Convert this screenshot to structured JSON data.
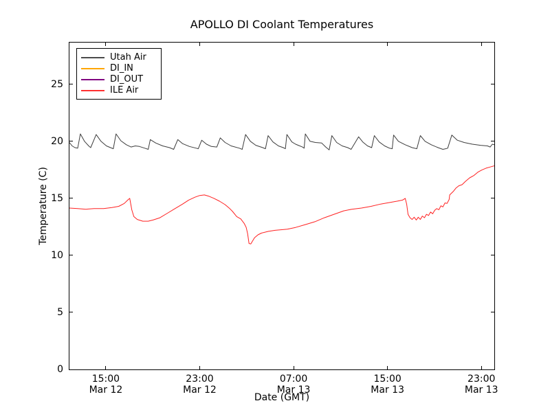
{
  "chart_data": {
    "type": "line",
    "title": "APOLLO DI Coolant Temperatures",
    "xlabel": "Date (GMT)",
    "ylabel": "Temperature (C)",
    "x_unit": "hours since Mar 12 00:00 GMT",
    "xlim": [
      11.9,
      48.1
    ],
    "ylim": [
      0,
      28.66
    ],
    "grid": false,
    "legend_position": "upper-left",
    "yticks": [
      0,
      5,
      10,
      15,
      20,
      25
    ],
    "xticks": [
      {
        "value": 15,
        "labels": [
          "15:00",
          "Mar 12"
        ]
      },
      {
        "value": 23,
        "labels": [
          "23:00",
          "Mar 12"
        ]
      },
      {
        "value": 31,
        "labels": [
          "07:00",
          "Mar 13"
        ]
      },
      {
        "value": 39,
        "labels": [
          "15:00",
          "Mar 13"
        ]
      },
      {
        "value": 47,
        "labels": [
          "23:00",
          "Mar 13"
        ]
      }
    ],
    "legend": [
      {
        "label": "Utah Air",
        "color": "#4a4a4a"
      },
      {
        "label": "DI_IN",
        "color": "#ffa500"
      },
      {
        "label": "DI_OUT",
        "color": "#800080"
      },
      {
        "label": "ILE Air",
        "color": "#ff3030"
      }
    ],
    "series": [
      {
        "name": "Utah Air",
        "color": "#3c3c3c",
        "points": [
          [
            11.9,
            19.9
          ],
          [
            12.13,
            19.6
          ],
          [
            12.37,
            19.45
          ],
          [
            12.6,
            19.4
          ],
          [
            12.83,
            20.65
          ],
          [
            13.18,
            20.0
          ],
          [
            13.54,
            19.6
          ],
          [
            13.71,
            19.45
          ],
          [
            14.18,
            20.6
          ],
          [
            14.59,
            20.0
          ],
          [
            15.05,
            19.6
          ],
          [
            15.4,
            19.45
          ],
          [
            15.64,
            19.35
          ],
          [
            15.87,
            20.65
          ],
          [
            16.28,
            20.05
          ],
          [
            16.75,
            19.7
          ],
          [
            17.15,
            19.5
          ],
          [
            17.51,
            19.6
          ],
          [
            17.86,
            19.55
          ],
          [
            18.32,
            19.4
          ],
          [
            18.61,
            19.3
          ],
          [
            18.79,
            20.15
          ],
          [
            19.26,
            19.85
          ],
          [
            19.84,
            19.6
          ],
          [
            20.43,
            19.45
          ],
          [
            20.78,
            19.3
          ],
          [
            21.13,
            20.15
          ],
          [
            21.54,
            19.8
          ],
          [
            22.12,
            19.55
          ],
          [
            22.7,
            19.4
          ],
          [
            22.88,
            19.35
          ],
          [
            23.17,
            20.1
          ],
          [
            23.58,
            19.75
          ],
          [
            23.99,
            19.55
          ],
          [
            24.46,
            19.5
          ],
          [
            24.75,
            20.3
          ],
          [
            25.16,
            19.9
          ],
          [
            25.68,
            19.6
          ],
          [
            26.38,
            19.4
          ],
          [
            26.62,
            19.3
          ],
          [
            26.91,
            20.6
          ],
          [
            27.32,
            20.0
          ],
          [
            27.78,
            19.65
          ],
          [
            28.37,
            19.45
          ],
          [
            28.6,
            19.35
          ],
          [
            28.83,
            20.5
          ],
          [
            29.24,
            19.95
          ],
          [
            29.71,
            19.6
          ],
          [
            30.12,
            19.45
          ],
          [
            30.3,
            19.35
          ],
          [
            30.43,
            20.6
          ],
          [
            30.85,
            19.95
          ],
          [
            31.17,
            19.75
          ],
          [
            31.4,
            19.65
          ],
          [
            31.75,
            19.5
          ],
          [
            31.9,
            19.4
          ],
          [
            32.0,
            20.65
          ],
          [
            32.4,
            20.0
          ],
          [
            32.86,
            19.9
          ],
          [
            33.39,
            19.85
          ],
          [
            33.74,
            19.5
          ],
          [
            34.03,
            19.25
          ],
          [
            34.26,
            20.5
          ],
          [
            34.67,
            19.9
          ],
          [
            35.14,
            19.6
          ],
          [
            35.61,
            19.45
          ],
          [
            35.9,
            19.3
          ],
          [
            36.54,
            20.4
          ],
          [
            36.89,
            19.95
          ],
          [
            37.3,
            19.6
          ],
          [
            37.65,
            19.45
          ],
          [
            37.88,
            20.5
          ],
          [
            38.29,
            19.95
          ],
          [
            38.76,
            19.6
          ],
          [
            39.17,
            19.4
          ],
          [
            39.4,
            19.35
          ],
          [
            39.52,
            20.55
          ],
          [
            39.93,
            20.0
          ],
          [
            40.51,
            19.7
          ],
          [
            41.1,
            19.45
          ],
          [
            41.5,
            19.35
          ],
          [
            41.8,
            20.5
          ],
          [
            42.2,
            20.0
          ],
          [
            42.73,
            19.7
          ],
          [
            43.31,
            19.45
          ],
          [
            43.72,
            19.3
          ],
          [
            43.95,
            19.35
          ],
          [
            44.13,
            19.4
          ],
          [
            44.48,
            20.55
          ],
          [
            44.95,
            20.1
          ],
          [
            45.53,
            19.9
          ],
          [
            46.23,
            19.75
          ],
          [
            46.93,
            19.65
          ],
          [
            47.52,
            19.6
          ],
          [
            47.75,
            19.5
          ],
          [
            47.93,
            19.75
          ],
          [
            48.1,
            19.7
          ]
        ]
      },
      {
        "name": "DI_IN",
        "color": "#ffa500",
        "points": []
      },
      {
        "name": "DI_OUT",
        "color": "#800080",
        "points": []
      },
      {
        "name": "ILE Air",
        "color": "#ff2020",
        "points": [
          [
            11.9,
            14.15
          ],
          [
            12.6,
            14.1
          ],
          [
            13.3,
            14.05
          ],
          [
            14.0,
            14.1
          ],
          [
            14.82,
            14.1
          ],
          [
            15.52,
            14.2
          ],
          [
            16.1,
            14.3
          ],
          [
            16.57,
            14.55
          ],
          [
            16.92,
            14.9
          ],
          [
            17.04,
            15.0
          ],
          [
            17.21,
            14.0
          ],
          [
            17.39,
            13.4
          ],
          [
            17.68,
            13.15
          ],
          [
            18.15,
            13.0
          ],
          [
            18.61,
            13.0
          ],
          [
            19.02,
            13.1
          ],
          [
            19.61,
            13.3
          ],
          [
            20.25,
            13.7
          ],
          [
            20.89,
            14.1
          ],
          [
            21.54,
            14.5
          ],
          [
            22.06,
            14.85
          ],
          [
            22.59,
            15.1
          ],
          [
            23.0,
            15.25
          ],
          [
            23.4,
            15.3
          ],
          [
            23.75,
            15.2
          ],
          [
            24.22,
            15.0
          ],
          [
            24.69,
            14.75
          ],
          [
            25.16,
            14.45
          ],
          [
            25.56,
            14.1
          ],
          [
            25.8,
            13.85
          ],
          [
            26.15,
            13.4
          ],
          [
            26.5,
            13.2
          ],
          [
            26.79,
            12.8
          ],
          [
            26.96,
            12.45
          ],
          [
            27.08,
            11.9
          ],
          [
            27.2,
            11.05
          ],
          [
            27.35,
            11.0
          ],
          [
            27.67,
            11.55
          ],
          [
            27.96,
            11.8
          ],
          [
            28.25,
            11.95
          ],
          [
            28.83,
            12.1
          ],
          [
            29.42,
            12.2
          ],
          [
            30.0,
            12.25
          ],
          [
            30.47,
            12.3
          ],
          [
            31.17,
            12.45
          ],
          [
            31.99,
            12.7
          ],
          [
            32.81,
            12.95
          ],
          [
            33.62,
            13.3
          ],
          [
            34.44,
            13.6
          ],
          [
            35.26,
            13.9
          ],
          [
            35.96,
            14.05
          ],
          [
            36.78,
            14.15
          ],
          [
            37.6,
            14.3
          ],
          [
            38.41,
            14.5
          ],
          [
            39.23,
            14.65
          ],
          [
            39.81,
            14.75
          ],
          [
            40.28,
            14.85
          ],
          [
            40.51,
            15.0
          ],
          [
            40.63,
            14.5
          ],
          [
            40.75,
            13.6
          ],
          [
            40.92,
            13.3
          ],
          [
            41.1,
            13.15
          ],
          [
            41.27,
            13.35
          ],
          [
            41.45,
            13.1
          ],
          [
            41.62,
            13.35
          ],
          [
            41.8,
            13.15
          ],
          [
            41.97,
            13.45
          ],
          [
            42.15,
            13.3
          ],
          [
            42.32,
            13.6
          ],
          [
            42.5,
            13.5
          ],
          [
            42.67,
            13.8
          ],
          [
            42.85,
            13.65
          ],
          [
            43.02,
            13.95
          ],
          [
            43.2,
            14.1
          ],
          [
            43.37,
            14.0
          ],
          [
            43.55,
            14.35
          ],
          [
            43.72,
            14.25
          ],
          [
            43.9,
            14.6
          ],
          [
            44.07,
            14.55
          ],
          [
            44.25,
            14.9
          ],
          [
            44.3,
            15.3
          ],
          [
            44.6,
            15.6
          ],
          [
            44.83,
            15.9
          ],
          [
            45.07,
            16.1
          ],
          [
            45.36,
            16.2
          ],
          [
            45.65,
            16.5
          ],
          [
            46.0,
            16.8
          ],
          [
            46.35,
            17.0
          ],
          [
            46.7,
            17.3
          ],
          [
            47.05,
            17.5
          ],
          [
            47.4,
            17.65
          ],
          [
            47.75,
            17.75
          ],
          [
            48.1,
            17.85
          ]
        ]
      }
    ]
  },
  "colors": {
    "background": "#ffffff",
    "spine": "#000000",
    "text": "#000000"
  }
}
